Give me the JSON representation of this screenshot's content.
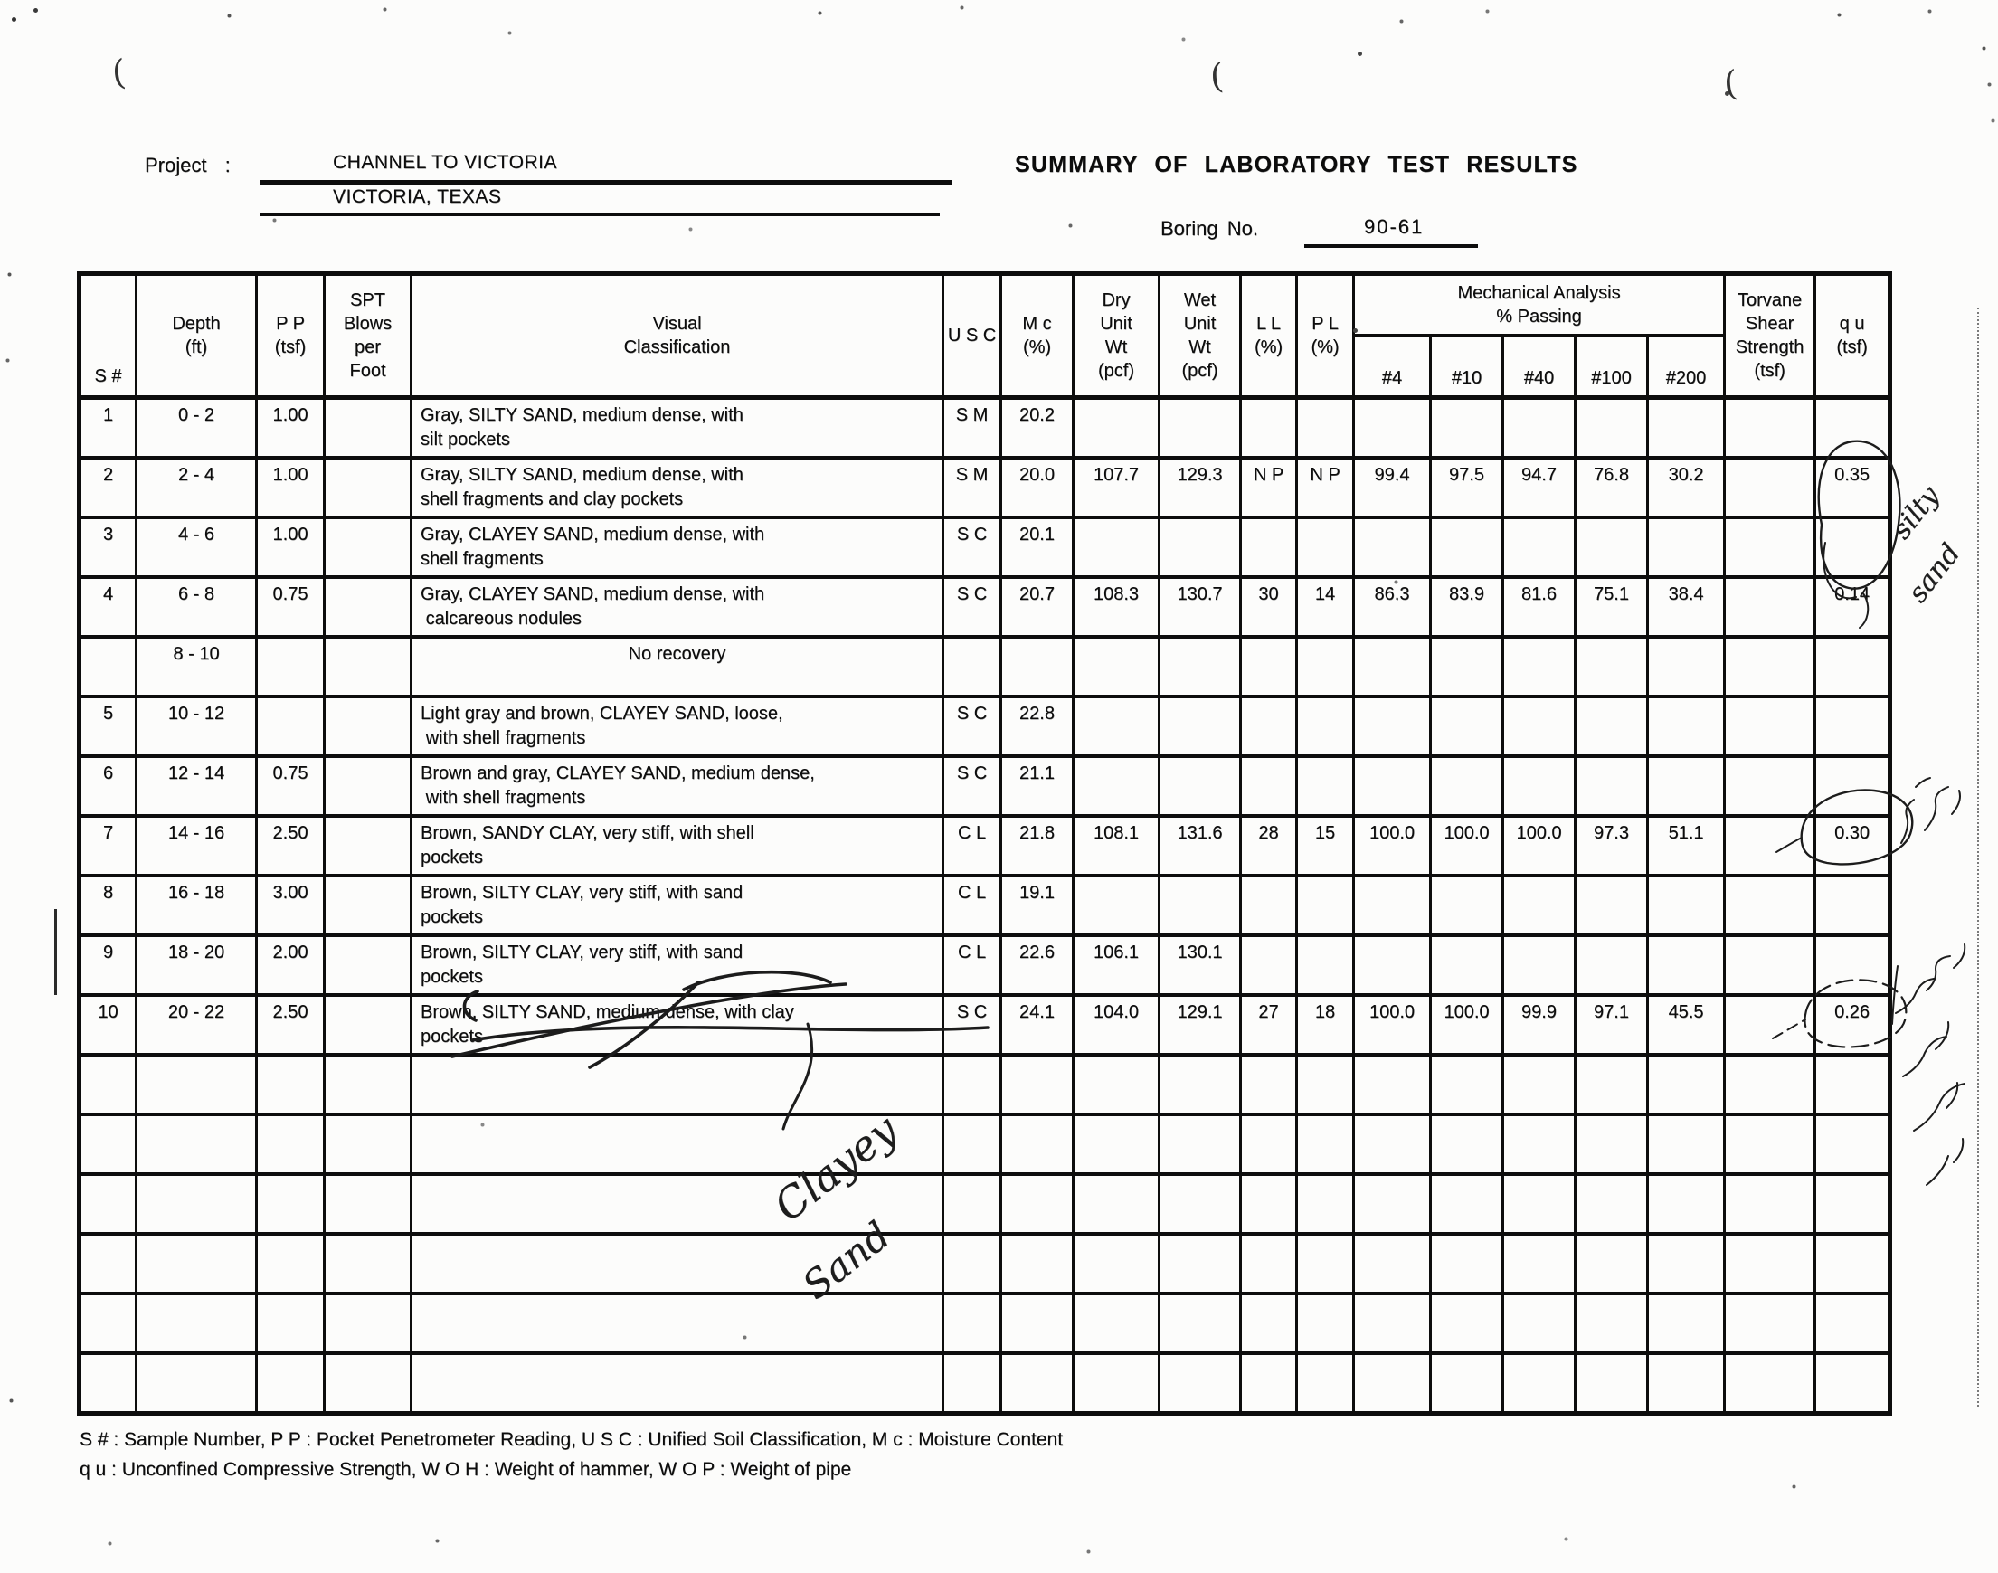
{
  "page": {
    "project_label": "Project :",
    "project_line1": "CHANNEL TO VICTORIA",
    "project_line2": "VICTORIA, TEXAS",
    "title": "SUMMARY OF LABORATORY TEST RESULTS",
    "boring_label": "Boring No.",
    "boring_value": "90-61"
  },
  "colors": {
    "ink": "#0d0d0d",
    "paper": "#fcfcfb"
  },
  "table": {
    "headers": {
      "s_no": "S #",
      "depth": "Depth\n(ft)",
      "pp": "P P\n(tsf)",
      "spt": "SPT\nBlows\nper\nFoot",
      "visual": "Visual\nClassification",
      "usc": "U S C",
      "mc": "M c\n(%)",
      "dry": "Dry\nUnit\nWt\n(pcf)",
      "wet": "Wet\nUnit\nWt\n(pcf)",
      "ll": "L L\n(%)",
      "pl": "P L\n(%)",
      "mech": "Mechanical Analysis\n% Passing",
      "sieves": [
        "#4",
        "#10",
        "#40",
        "#100",
        "#200"
      ],
      "torvane": "Torvane\nShear\nStrength\n(tsf)",
      "qu": "q u\n(tsf)"
    },
    "rows": [
      {
        "s": "1",
        "depth": "0 - 2",
        "pp": "1.00",
        "cls": "Gray, SILTY SAND, medium dense, with\nsilt pockets",
        "usc": "S M",
        "mc": "20.2"
      },
      {
        "s": "2",
        "depth": "2 - 4",
        "pp": "1.00",
        "cls": "Gray, SILTY SAND, medium dense, with\nshell fragments and clay pockets",
        "usc": "S M",
        "mc": "20.0",
        "dry": "107.7",
        "wet": "129.3",
        "ll": "N P",
        "pl": "N P",
        "p4": "99.4",
        "p10": "97.5",
        "p40": "94.7",
        "p100": "76.8",
        "p200": "30.2",
        "qu": "0.35"
      },
      {
        "s": "3",
        "depth": "4 - 6",
        "pp": "1.00",
        "cls": "Gray, CLAYEY SAND, medium dense, with\nshell fragments",
        "usc": "S C",
        "mc": "20.1"
      },
      {
        "s": "4",
        "depth": "6 - 8",
        "pp": "0.75",
        "cls": "Gray, CLAYEY SAND, medium dense, with\n calcareous nodules",
        "usc": "S C",
        "mc": "20.7",
        "dry": "108.3",
        "wet": "130.7",
        "ll": "30",
        "pl": "14",
        "p4": "86.3",
        "p10": "83.9",
        "p40": "81.6",
        "p100": "75.1",
        "p200": "38.4",
        "qu": "0.14"
      },
      {
        "depth": "8 - 10",
        "cls": "No recovery",
        "center": true
      },
      {
        "s": "5",
        "depth": "10 - 12",
        "cls": "Light gray and brown, CLAYEY SAND, loose,\n with shell fragments",
        "usc": "S C",
        "mc": "22.8"
      },
      {
        "s": "6",
        "depth": "12 - 14",
        "pp": "0.75",
        "cls": "Brown and gray, CLAYEY SAND, medium dense,\n with shell fragments",
        "usc": "S C",
        "mc": "21.1"
      },
      {
        "s": "7",
        "depth": "14 - 16",
        "pp": "2.50",
        "cls": "Brown, SANDY CLAY, very stiff, with shell\npockets",
        "usc": "C L",
        "mc": "21.8",
        "dry": "108.1",
        "wet": "131.6",
        "ll": "28",
        "pl": "15",
        "p4": "100.0",
        "p10": "100.0",
        "p40": "100.0",
        "p100": "97.3",
        "p200": "51.1",
        "qu": "0.30"
      },
      {
        "s": "8",
        "depth": "16 - 18",
        "pp": "3.00",
        "cls": "Brown, SILTY CLAY, very stiff, with sand\npockets",
        "usc": "C L",
        "mc": "19.1"
      },
      {
        "s": "9",
        "depth": "18 - 20",
        "pp": "2.00",
        "cls": "Brown, SILTY CLAY, very stiff, with sand\npockets",
        "usc": "C L",
        "mc": "22.6",
        "dry": "106.1",
        "wet": "130.1"
      },
      {
        "s": "10",
        "depth": "20 - 22",
        "pp": "2.50",
        "cls": "Brown, SILTY SAND, medium dense, with clay\npockets",
        "usc": "S C",
        "mc": "24.1",
        "dry": "104.0",
        "wet": "129.1",
        "ll": "27",
        "pl": "18",
        "p4": "100.0",
        "p10": "100.0",
        "p40": "99.9",
        "p100": "97.1",
        "p200": "45.5",
        "qu": "0.26"
      }
    ],
    "empty_row_count": 6
  },
  "notes": {
    "line1": "S # : Sample Number, P P : Pocket Penetrometer Reading, U S C : Unified Soil Classification, M c : Moisture Content",
    "line2": "q u : Unconfined Compressive Strength, W O H : Weight of hammer, W O P : Weight of pipe"
  },
  "annotations": {
    "margin_note_silty": {
      "word1": "silty",
      "word2": "sand"
    },
    "correction_note": {
      "word1": "Clayey",
      "word2": "Sand"
    },
    "circled_qu_values": [
      "0.35",
      "0.30",
      "0.26"
    ],
    "stray_paren": "("
  }
}
